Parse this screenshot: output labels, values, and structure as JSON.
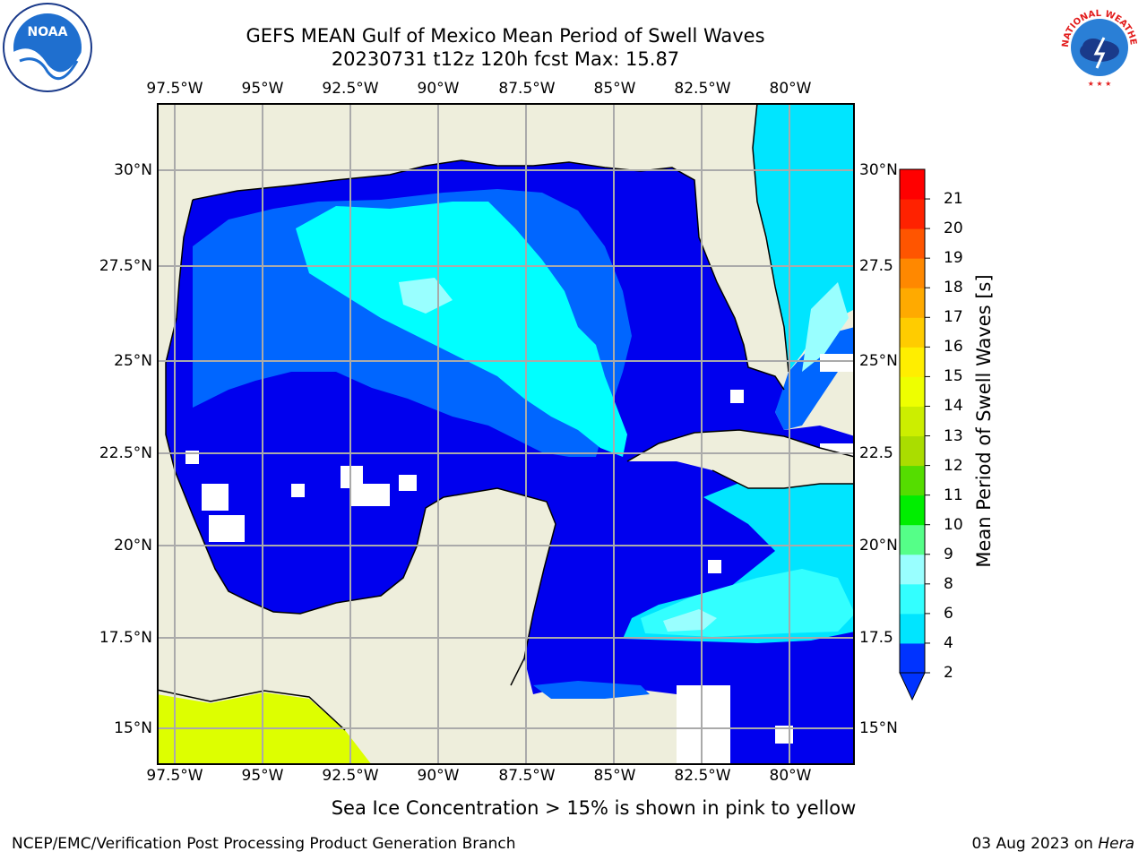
{
  "title": {
    "line1": "GEFS MEAN Gulf of Mexico Mean Period of Swell Waves",
    "line2": "20230731 t12z 120h fcst   Max: 15.87"
  },
  "axes": {
    "lon_labels": [
      "97.5°W",
      "95°W",
      "92.5°W",
      "90°W",
      "87.5°W",
      "85°W",
      "82.5°W",
      "80°W"
    ],
    "lat_labels_left": [
      "30°N",
      "27.5°N",
      "25°N",
      "22.5°N",
      "20°N",
      "17.5°N",
      "15°N"
    ],
    "lat_labels_right": [
      "30°N",
      "27.5",
      "25°N",
      "22.5",
      "20°N",
      "17.5",
      "15°N"
    ]
  },
  "colorbar": {
    "title": "Mean Period of Swell Waves [s]",
    "ticks": [
      "2",
      "4",
      "6",
      "8",
      "9",
      "10",
      "11",
      "12",
      "13",
      "14",
      "15",
      "16",
      "17",
      "18",
      "19",
      "20",
      "21"
    ],
    "colors": [
      "#0033ff",
      "#00e5ff",
      "#33ffff",
      "#99ffff",
      "#55ff88",
      "#00ee00",
      "#55dd00",
      "#aadd00",
      "#ccee00",
      "#eeff00",
      "#ffee00",
      "#ffcc00",
      "#ffaa00",
      "#ff8800",
      "#ff5500",
      "#ff2200",
      "#ff0000"
    ]
  },
  "colors": {
    "land": "#eeeedc",
    "ocean_low": "#0000ee",
    "ocean_mid": "#0066ff",
    "swell_cyan": "#00ffff",
    "swell_lightcyan": "#99ffff",
    "ice": "#ddff00",
    "grid": "#aaaaaa"
  },
  "note": "Sea Ice Concentration > 15% is shown in pink to yellow",
  "footer": {
    "left": "NCEP/EMC/Verification Post Processing Product Generation Branch",
    "right_date": "03 Aug 2023 on ",
    "right_host": "Hera"
  },
  "logos": {
    "noaa": "NOAA",
    "nws": "NATIONAL WEATHER SERVICE"
  }
}
